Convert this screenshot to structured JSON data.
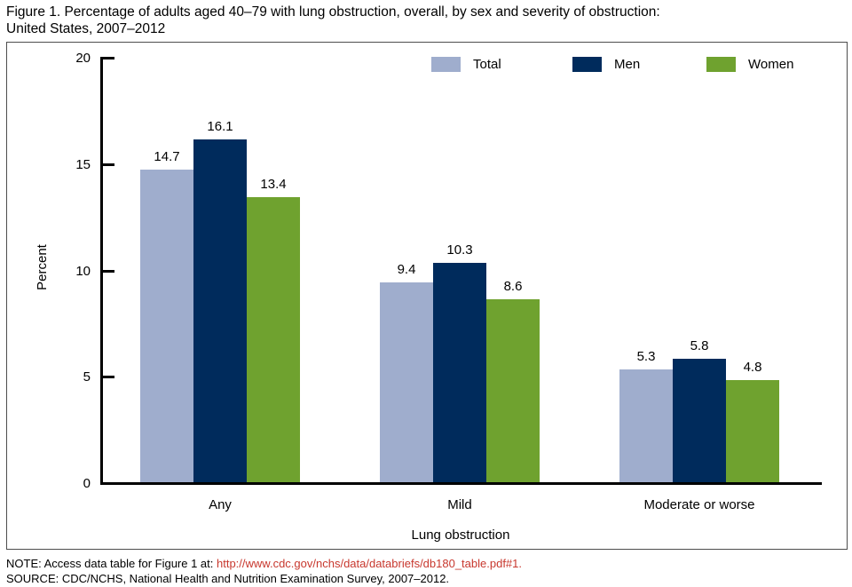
{
  "title": {
    "line1": "Figure 1. Percentage of adults aged 40–79 with lung obstruction, overall, by sex and severity of obstruction:",
    "line2": "United States, 2007–2012"
  },
  "colors": {
    "total": "#9FADCD",
    "men": "#002B5C",
    "women": "#6FA22F",
    "axis": "#000000",
    "frame_border": "#4d4d4d",
    "link": "#C8382E"
  },
  "chart_data": {
    "type": "bar",
    "categories": [
      "Any",
      "Mild",
      "Moderate or worse"
    ],
    "series": [
      {
        "name": "Total",
        "color": "#9FADCD",
        "values": [
          14.7,
          9.4,
          5.3
        ]
      },
      {
        "name": "Men",
        "color": "#002B5C",
        "values": [
          16.1,
          10.3,
          5.8
        ]
      },
      {
        "name": "Women",
        "color": "#6FA22F",
        "values": [
          13.4,
          8.6,
          4.8
        ]
      }
    ],
    "xlabel": "Lung obstruction",
    "ylabel": "Percent",
    "ylim": [
      0,
      20
    ],
    "yticks": [
      0,
      5,
      10,
      15,
      20
    ],
    "legend_position": "top-center",
    "grid": false,
    "value_labels": true
  },
  "footer": {
    "note_prefix": "NOTE: Access data table for Figure 1 at: ",
    "note_link": "http://www.cdc.gov/nchs/data/databriefs/db180_table.pdf#1.",
    "source": "SOURCE: CDC/NCHS, National Health and Nutrition Examination Survey, 2007–2012."
  }
}
